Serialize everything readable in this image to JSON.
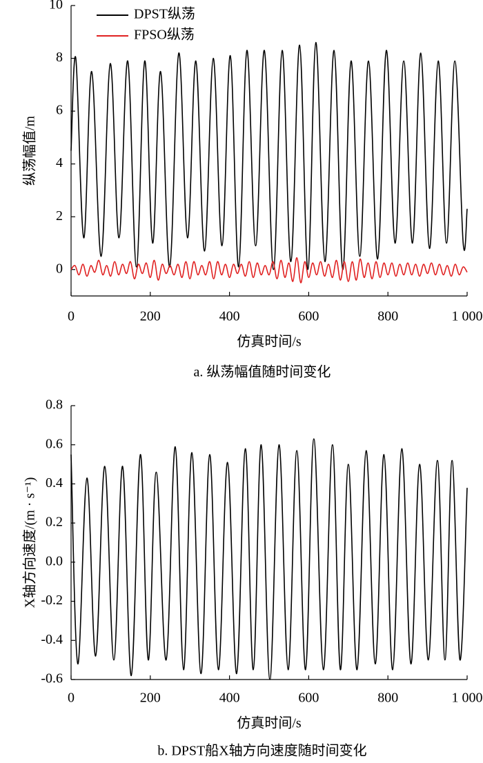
{
  "chart_data": [
    {
      "type": "line",
      "caption": "a. 纵荡幅值随时间变化",
      "x_label": "仿真时间/s",
      "y_label": "纵荡幅值/m",
      "xlim": [
        0,
        1000
      ],
      "xticks": [
        0,
        200,
        400,
        600,
        800,
        {
          "value": 1000,
          "label": "1 000"
        }
      ],
      "ylim": [
        -1,
        10
      ],
      "yticks": [
        0,
        2,
        4,
        6,
        8,
        10
      ],
      "legend": "upper left",
      "series": [
        {
          "name": "DPST纵荡",
          "color": "#000000",
          "x": [
            0,
            12,
            32,
            52,
            76,
            99,
            121,
            143,
            165,
            186,
            206,
            226,
            249,
            272,
            294,
            315,
            337,
            359,
            381,
            402,
            423,
            444,
            466,
            488,
            511,
            533,
            555,
            577,
            598,
            618,
            641,
            664,
            686,
            707,
            729,
            751,
            774,
            796,
            818,
            840,
            862,
            883,
            905,
            927,
            948,
            969,
            990,
            1000
          ],
          "values": [
            4.5,
            8.0,
            1.2,
            7.5,
            0.5,
            7.8,
            1.2,
            7.9,
            0.1,
            7.9,
            1.0,
            7.5,
            0.1,
            8.2,
            1.2,
            7.9,
            0.7,
            8.0,
            0.9,
            8.1,
            0.1,
            8.3,
            0.9,
            8.3,
            0.0,
            8.3,
            0.3,
            8.5,
            0.0,
            8.6,
            0.3,
            8.3,
            0.0,
            7.9,
            0.5,
            7.9,
            0.4,
            8.3,
            1.0,
            7.9,
            1.0,
            8.2,
            0.8,
            7.9,
            1.0,
            7.9,
            1.0,
            2.3
          ]
        },
        {
          "name": "FPSO纵荡",
          "color": "#e02020",
          "x": [
            0,
            10,
            20,
            30,
            40,
            50,
            60,
            70,
            80,
            90,
            100,
            110,
            120,
            130,
            140,
            150,
            160,
            170,
            180,
            190,
            200,
            210,
            220,
            230,
            240,
            250,
            260,
            270,
            280,
            290,
            300,
            310,
            320,
            330,
            340,
            350,
            360,
            370,
            380,
            390,
            400,
            410,
            420,
            430,
            440,
            450,
            460,
            470,
            480,
            490,
            500,
            510,
            520,
            530,
            540,
            550,
            560,
            570,
            580,
            590,
            600,
            610,
            620,
            630,
            640,
            650,
            660,
            670,
            680,
            690,
            700,
            710,
            720,
            730,
            740,
            750,
            760,
            770,
            780,
            790,
            800,
            810,
            820,
            830,
            840,
            850,
            860,
            870,
            880,
            890,
            900,
            910,
            920,
            930,
            940,
            950,
            960,
            970,
            980,
            990,
            1000
          ],
          "values": [
            0.0,
            0.15,
            -0.2,
            0.2,
            -0.25,
            0.15,
            -0.1,
            0.35,
            -0.2,
            0.15,
            -0.25,
            0.3,
            -0.2,
            0.2,
            -0.15,
            0.3,
            -0.35,
            0.2,
            -0.15,
            0.25,
            -0.3,
            0.35,
            -0.4,
            0.2,
            -0.15,
            0.15,
            -0.2,
            0.2,
            -0.3,
            0.3,
            -0.35,
            0.3,
            -0.2,
            0.15,
            -0.2,
            0.3,
            -0.35,
            0.3,
            -0.2,
            0.2,
            -0.3,
            0.2,
            -0.15,
            0.2,
            -0.25,
            0.3,
            -0.3,
            0.25,
            -0.2,
            0.15,
            -0.2,
            0.3,
            -0.35,
            0.35,
            -0.3,
            0.25,
            -0.45,
            0.45,
            -0.5,
            0.3,
            -0.3,
            0.25,
            -0.2,
            0.3,
            -0.25,
            0.2,
            -0.3,
            0.35,
            -0.4,
            0.3,
            -0.45,
            0.3,
            -0.4,
            0.4,
            -0.3,
            0.25,
            -0.35,
            0.3,
            -0.3,
            0.25,
            -0.2,
            0.25,
            -0.25,
            0.2,
            -0.2,
            0.25,
            -0.2,
            0.2,
            -0.25,
            0.2,
            -0.15,
            0.25,
            -0.2,
            0.2,
            -0.2,
            0.15,
            -0.25,
            0.2,
            -0.2,
            0.1,
            -0.1
          ]
        }
      ]
    },
    {
      "type": "line",
      "caption": "b. DPST船X轴方向速度随时间变化",
      "x_label": "仿真时间/s",
      "y_label": "X轴方向速度/(m · s⁻¹)",
      "xlim": [
        0,
        1000
      ],
      "xticks": [
        0,
        200,
        400,
        600,
        800,
        {
          "value": 1000,
          "label": "1 000"
        }
      ],
      "ylim": [
        -0.6,
        0.8
      ],
      "yticks": [
        -0.6,
        -0.4,
        -0.2,
        {
          "value": 0,
          "label": "0.0"
        },
        0.2,
        0.4,
        0.6,
        0.8
      ],
      "series": [
        {
          "color": "#000000",
          "x": [
            0,
            17,
            40,
            62,
            85,
            108,
            130,
            152,
            175,
            195,
            215,
            240,
            263,
            284,
            305,
            328,
            350,
            372,
            395,
            418,
            440,
            460,
            480,
            502,
            525,
            548,
            570,
            592,
            613,
            637,
            660,
            680,
            700,
            722,
            745,
            768,
            790,
            812,
            835,
            858,
            880,
            902,
            925,
            944,
            962,
            982,
            1000
          ],
          "values": [
            0.55,
            -0.52,
            0.43,
            -0.48,
            0.49,
            -0.5,
            0.49,
            -0.58,
            0.55,
            -0.5,
            0.46,
            -0.5,
            0.59,
            -0.55,
            0.56,
            -0.57,
            0.55,
            -0.55,
            0.51,
            -0.57,
            0.58,
            -0.55,
            0.6,
            -0.6,
            0.6,
            -0.55,
            0.57,
            -0.55,
            0.63,
            -0.55,
            0.6,
            -0.55,
            0.5,
            -0.55,
            0.57,
            -0.52,
            0.55,
            -0.55,
            0.58,
            -0.52,
            0.5,
            -0.5,
            0.52,
            -0.5,
            0.52,
            -0.5,
            0.38
          ]
        }
      ]
    }
  ]
}
